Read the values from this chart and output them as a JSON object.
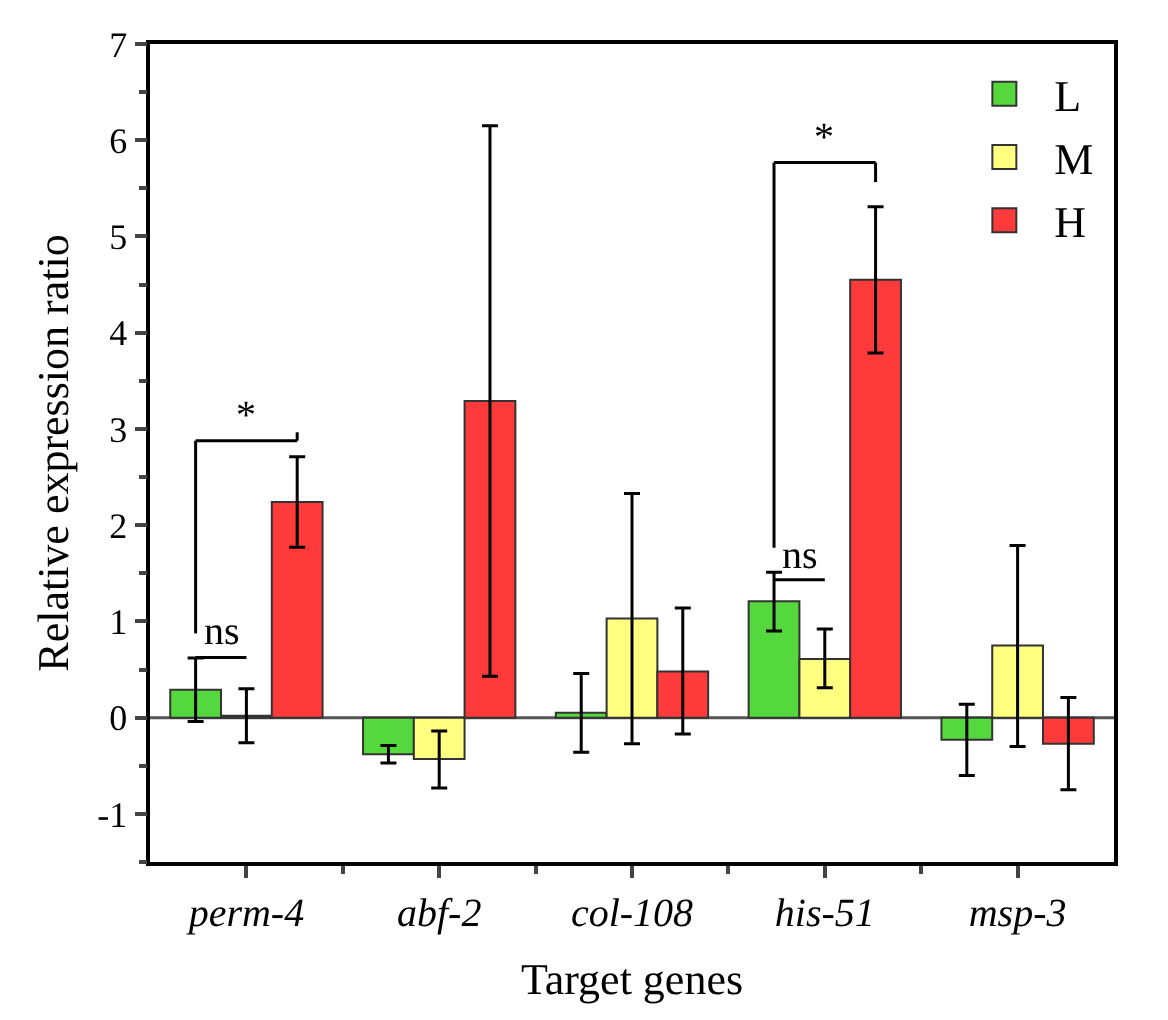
{
  "chart_data": {
    "type": "bar",
    "xlabel": "Target genes",
    "ylabel": "Relative expression ratio",
    "categories": [
      "perm-4",
      "abf-2",
      "col-108",
      "his-51",
      "msp-3"
    ],
    "series": [
      {
        "name": "L",
        "color": "#55d83e",
        "values": [
          0.29,
          -0.38,
          0.05,
          1.21,
          -0.23
        ],
        "errors": [
          [
            -0.04,
            0.62
          ],
          [
            -0.47,
            -0.29
          ],
          [
            -0.36,
            0.46
          ],
          [
            0.9,
            1.51
          ],
          [
            -0.6,
            0.14
          ]
        ]
      },
      {
        "name": "M",
        "color": "#ffff80",
        "values": [
          0.02,
          -0.43,
          1.03,
          0.61,
          0.75
        ],
        "errors": [
          [
            -0.26,
            0.3
          ],
          [
            -0.73,
            -0.14
          ],
          [
            -0.27,
            2.33
          ],
          [
            0.31,
            0.92
          ],
          [
            -0.3,
            1.79
          ]
        ]
      },
      {
        "name": "H",
        "color": "#ff3a3a",
        "values": [
          2.24,
          3.29,
          0.48,
          4.55,
          -0.27
        ],
        "errors": [
          [
            1.77,
            2.71
          ],
          [
            0.43,
            6.15
          ],
          [
            -0.17,
            1.14
          ],
          [
            3.79,
            5.31
          ],
          [
            -0.75,
            0.21
          ]
        ]
      }
    ],
    "ylim": [
      -1.5,
      7
    ],
    "yticks": [
      -1,
      0,
      1,
      2,
      3,
      4,
      5,
      6,
      7
    ],
    "ref_lines": [
      {
        "axis": "y",
        "value": 0,
        "color": "#555555"
      }
    ],
    "annotations": [
      "ns",
      "*",
      "ns",
      "*"
    ],
    "legend": "top right",
    "grid": false
  }
}
